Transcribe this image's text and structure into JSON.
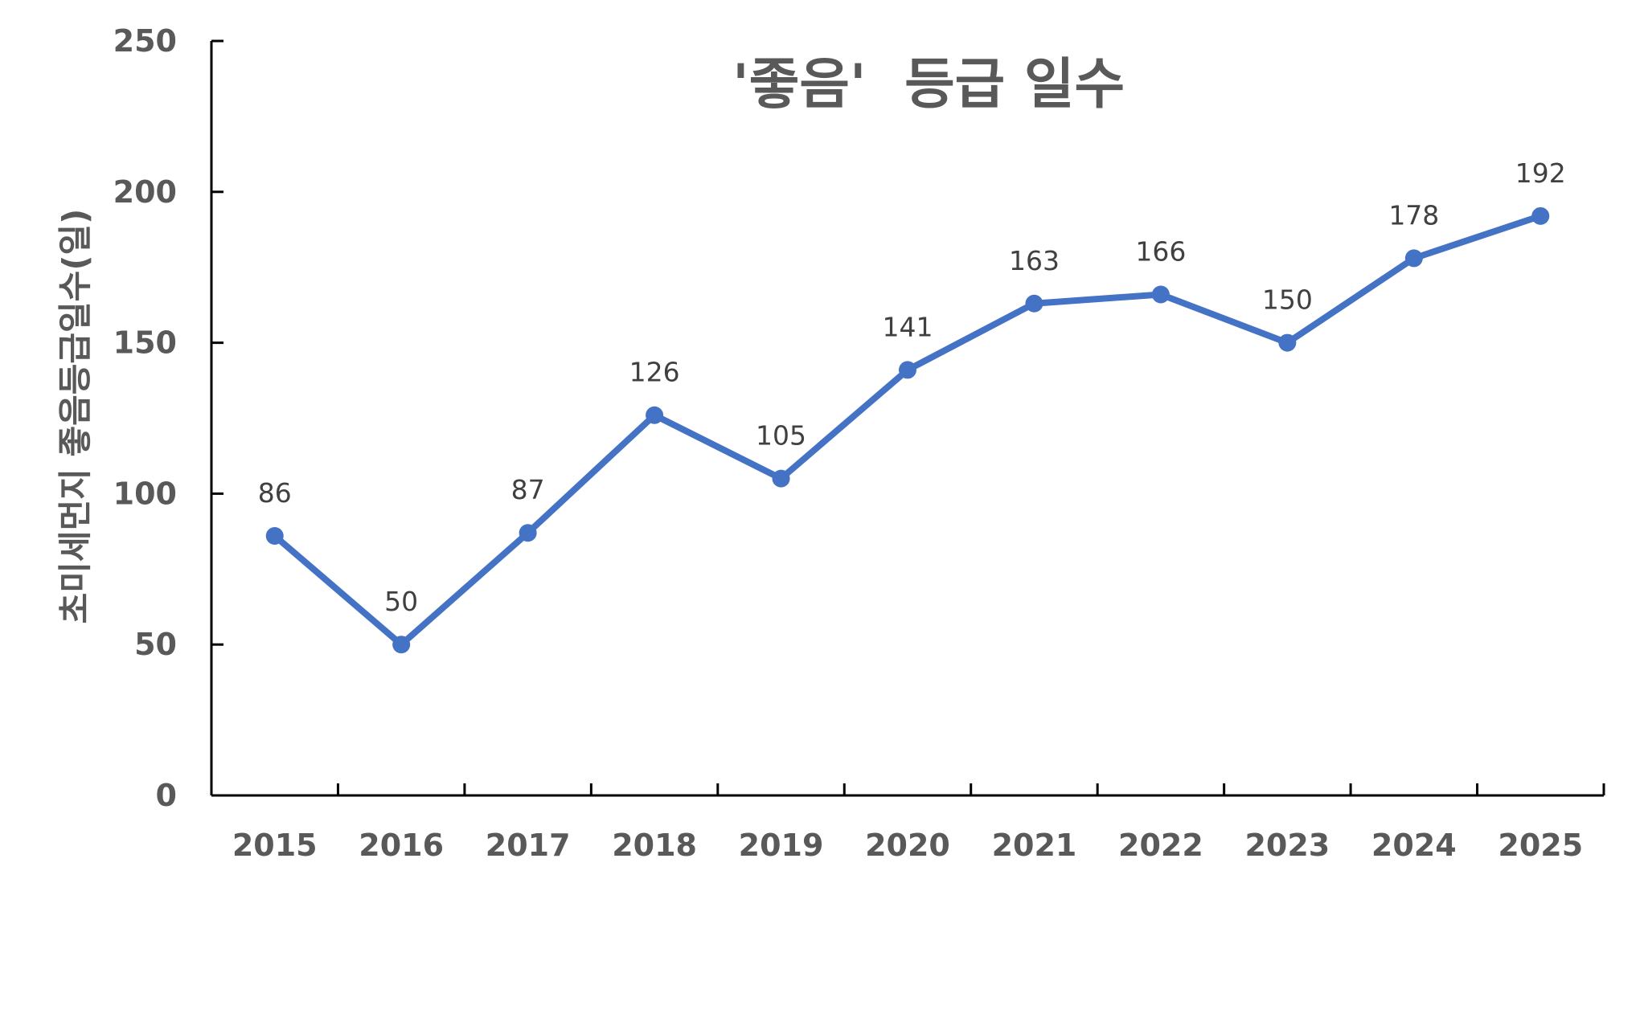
{
  "chart_data": {
    "type": "line",
    "title": "'좋음'  등급 일수",
    "xlabel": "",
    "ylabel": "초미세먼지 좋음등급일수(일)",
    "categories": [
      "2015",
      "2016",
      "2017",
      "2018",
      "2019",
      "2020",
      "2021",
      "2022",
      "2023",
      "2024",
      "2025"
    ],
    "values": [
      86,
      50,
      87,
      126,
      105,
      141,
      163,
      166,
      150,
      178,
      192
    ],
    "ylim": [
      0,
      250
    ],
    "yticks": [
      0,
      50,
      100,
      150,
      200,
      250
    ],
    "grid": false,
    "legend": "none",
    "data_labels": true,
    "colors": {
      "line": "#4472C4",
      "text": "#595959",
      "axis": "#000000"
    }
  }
}
